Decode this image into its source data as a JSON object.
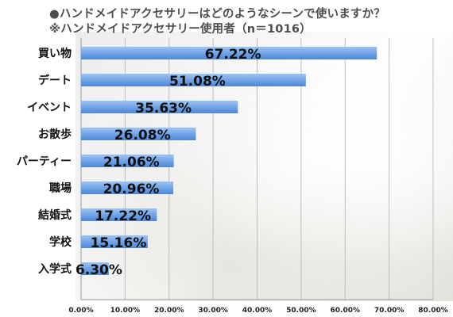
{
  "title_lines": [
    "●ハンドメイドアクセサリーはどのようなシーンで使いますか？",
    "※ハンドメイドアクセサリー使用者（n＝1016）"
  ],
  "colors": {
    "bar_top": "#9ec3f2",
    "bar_bottom": "#4a86d8",
    "grid": "#bdbdbd",
    "label_text": "#111111"
  },
  "chart_data": {
    "type": "bar",
    "orientation": "horizontal",
    "title": "●ハンドメイドアクセサリーはどのようなシーンで使いますか？",
    "subtitle": "※ハンドメイドアクセサリー使用者（n＝1016）",
    "categories": [
      "買い物",
      "デート",
      "イベント",
      "お散歩",
      "パーティー",
      "職場",
      "結婚式",
      "学校",
      "入学式"
    ],
    "values": [
      67.22,
      51.08,
      35.63,
      26.08,
      21.06,
      20.96,
      17.22,
      15.16,
      6.3
    ],
    "value_labels": [
      "67.22%",
      "51.08%",
      "35.63%",
      "26.08%",
      "21.06%",
      "20.96%",
      "17.22%",
      "15.16%",
      "6.30%"
    ],
    "xlim": [
      0,
      80
    ],
    "xticks": [
      0,
      10,
      20,
      30,
      40,
      50,
      60,
      70,
      80
    ],
    "xtick_labels": [
      "0.00%",
      "10.00%",
      "20.00%",
      "30.00%",
      "40.00%",
      "50.00%",
      "60.00%",
      "70.00%",
      "80.00%"
    ],
    "grid": true,
    "legend": "none"
  }
}
